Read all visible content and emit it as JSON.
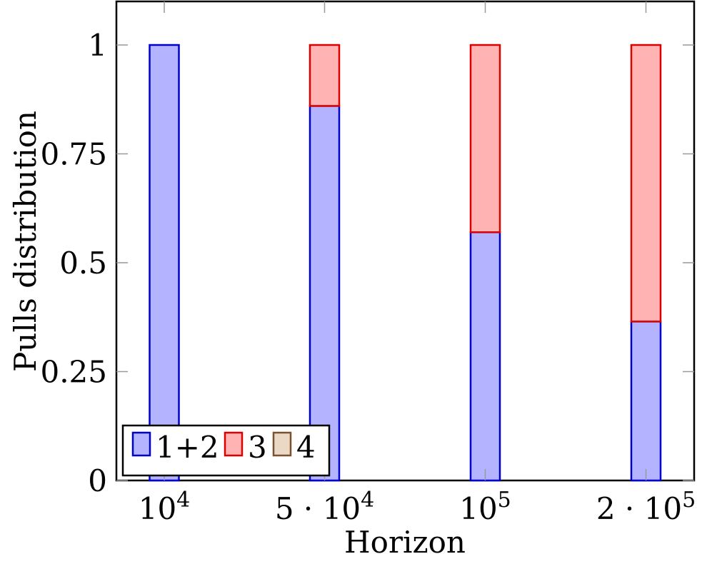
{
  "chart_data": {
    "type": "bar",
    "stacked": true,
    "categories": [
      "10^4",
      "5·10^4",
      "10^5",
      "2·10^5"
    ],
    "series": [
      {
        "name": "1+2",
        "values": [
          1.0,
          0.86,
          0.57,
          0.365
        ],
        "color": "#0000CC",
        "fill": "#B3B3FF"
      },
      {
        "name": "3",
        "values": [
          0.0,
          0.14,
          0.43,
          0.635
        ],
        "color": "#DD0000",
        "fill": "#FFB3B3"
      },
      {
        "name": "4",
        "values": [
          0,
          0,
          0,
          0
        ],
        "color": "#7A5230",
        "fill": "#EBD9C6"
      }
    ],
    "xlabel": "Horizon",
    "ylabel": "Pulls distribution",
    "ylim": [
      0,
      1.1
    ],
    "yticks": [
      0,
      0.25,
      0.5,
      0.75,
      1
    ],
    "ytick_labels": [
      "0",
      "0.25",
      "0.5",
      "0.75",
      "1"
    ],
    "xtick_labels": [
      {
        "base": "10",
        "exp": "4"
      },
      {
        "base": "5 · 10",
        "exp": "4"
      },
      {
        "base": "10",
        "exp": "5"
      },
      {
        "base": "2 · 10",
        "exp": "5"
      }
    ],
    "grid": false,
    "legend": {
      "placement": "bottom-left",
      "orientation": "horizontal"
    }
  }
}
